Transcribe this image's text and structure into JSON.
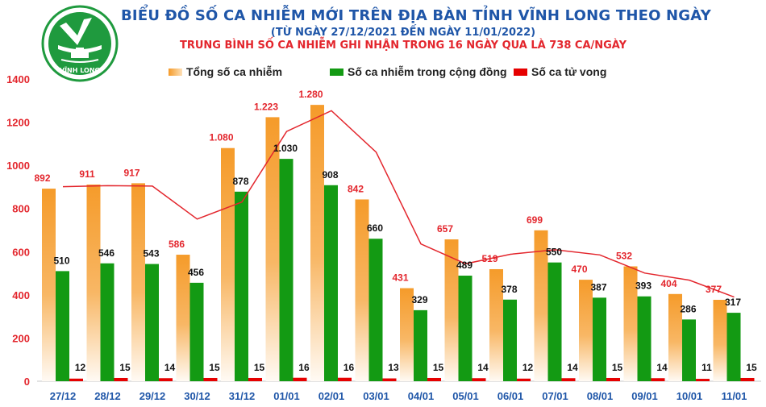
{
  "header": {
    "title": "BIỂU ĐỒ SỐ CA NHIỄM MỚI TRÊN ĐỊA BÀN TỈNH VĨNH LONG THEO NGÀY",
    "date_range": "(TỪ NGÀY 27/12/2021 ĐẾN NGÀY 11/01/2022)",
    "average_note": "TRUNG BÌNH SỐ CA NHIỄM GHI NHẬN TRONG 16 NGÀY QUA LÀ 738 CA/NGÀY",
    "logo_text": "VĨNH LONG"
  },
  "colors": {
    "title": "#1f56a8",
    "accent_red": "#e3262d",
    "total": "#f59b2a",
    "community": "#139a13",
    "deaths": "#e60000",
    "logo": "#1f9a3e"
  },
  "chart_data": {
    "type": "bar",
    "categories": [
      "27/12",
      "28/12",
      "29/12",
      "30/12",
      "31/12",
      "01/01",
      "02/01",
      "03/01",
      "04/01",
      "05/01",
      "06/01",
      "07/01",
      "08/01",
      "09/01",
      "10/01",
      "11/01"
    ],
    "series": [
      {
        "name": "Tổng số ca nhiễm",
        "values": [
          892,
          911,
          917,
          586,
          1080,
          1223,
          1280,
          842,
          431,
          657,
          519,
          699,
          470,
          532,
          404,
          377
        ],
        "labels": [
          "892",
          "911",
          "917",
          "586",
          "1.080",
          "1.223",
          "1.280",
          "842",
          "431",
          "657",
          "519",
          "699",
          "470",
          "532",
          "404",
          "377"
        ]
      },
      {
        "name": "Số ca nhiễm trong cộng đồng",
        "values": [
          510,
          546,
          543,
          456,
          878,
          1030,
          908,
          660,
          329,
          489,
          378,
          550,
          387,
          393,
          286,
          317
        ],
        "labels": [
          "510",
          "546",
          "543",
          "456",
          "878",
          "1.030",
          "908",
          "660",
          "329",
          "489",
          "378",
          "550",
          "387",
          "393",
          "286",
          "317"
        ]
      },
      {
        "name": "Số ca tử vong",
        "values": [
          12,
          15,
          14,
          15,
          15,
          16,
          16,
          13,
          15,
          14,
          12,
          14,
          15,
          14,
          11,
          15
        ],
        "labels": [
          "12",
          "15",
          "14",
          "15",
          "15",
          "16",
          "16",
          "13",
          "15",
          "14",
          "12",
          "14",
          "15",
          "14",
          "11",
          "15"
        ]
      }
    ],
    "trendline": [
      901,
      906,
      904,
      751,
      830,
      1157,
      1253,
      1061,
      636,
      544,
      588,
      609,
      585,
      501,
      468,
      390
    ],
    "yticks": [
      0,
      200,
      400,
      600,
      800,
      1000,
      1200,
      1400
    ],
    "ylim": [
      0,
      1400
    ],
    "grid": false,
    "legend_position": "top"
  }
}
